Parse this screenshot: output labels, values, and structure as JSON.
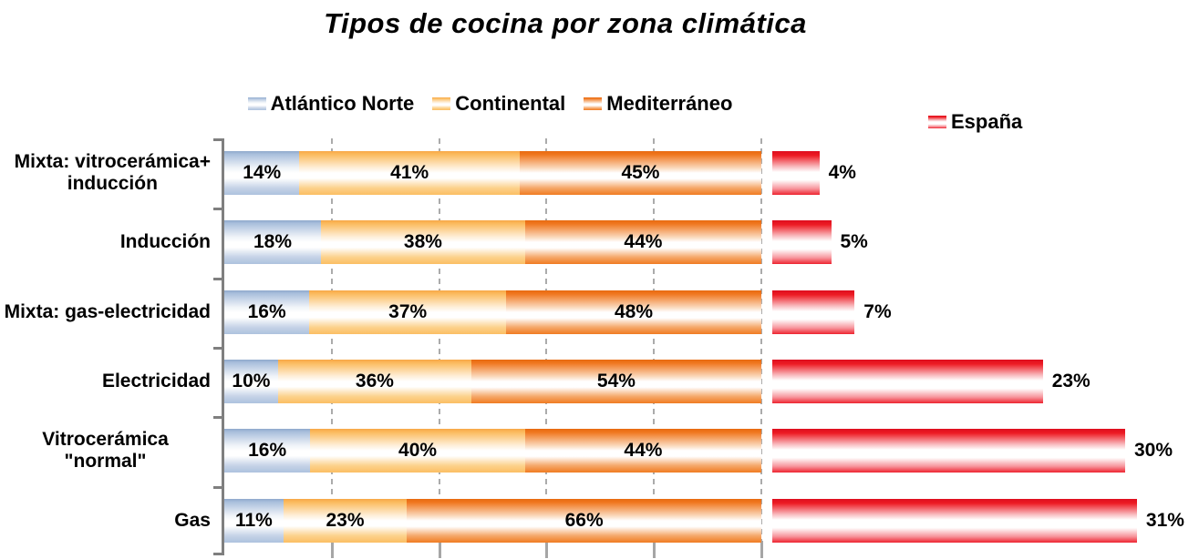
{
  "title": "Tipos de cocina por zona climática",
  "legend": {
    "series": [
      {
        "label": "Atlántico Norte",
        "color": "#A9BFDC"
      },
      {
        "label": "Continental",
        "color": "#FBBC60"
      },
      {
        "label": "Mediterráneo",
        "color": "#F0771F"
      }
    ],
    "espana": {
      "label": "España",
      "color": "#ED1C24"
    }
  },
  "chart_data": {
    "type": "bar",
    "orientation": "horizontal",
    "title": "Tipos de cocina por zona climática",
    "value_suffix": "%",
    "categories": [
      "Mixta: vitrocerámica+\ninducción",
      "Inducción",
      "Mixta: gas-electricidad",
      "Electricidad",
      "Vitrocerámica \"normal\"",
      "Gas"
    ],
    "series": [
      {
        "name": "Atlántico Norte",
        "values": [
          14,
          18,
          16,
          10,
          16,
          11
        ]
      },
      {
        "name": "Continental",
        "values": [
          41,
          38,
          37,
          36,
          40,
          23
        ]
      },
      {
        "name": "Mediterráneo",
        "values": [
          45,
          44,
          48,
          54,
          44,
          66
        ]
      },
      {
        "name": "España",
        "values": [
          4,
          5,
          7,
          23,
          30,
          31
        ]
      }
    ],
    "stacked_axis": {
      "min": 0,
      "max": 100,
      "gridline_step": 20,
      "gridlines_dashed": true
    },
    "legend_position": "top",
    "data_labels": "inside-center (stacked), outside-right (España)"
  }
}
